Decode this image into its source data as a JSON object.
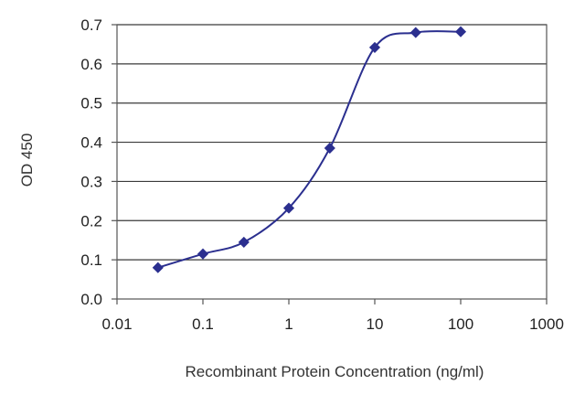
{
  "chart_data": {
    "type": "line",
    "title": "",
    "xlabel": "Recombinant Protein Concentration (ng/ml)",
    "ylabel": "OD 450",
    "x_scale": "log",
    "xlim": [
      0.01,
      1000
    ],
    "ylim": [
      0.0,
      0.7
    ],
    "x_ticks": [
      0.01,
      0.1,
      1,
      10,
      100,
      1000
    ],
    "x_tick_labels": [
      "0.01",
      "0.1",
      "1",
      "10",
      "100",
      "1000"
    ],
    "y_ticks": [
      0.0,
      0.1,
      0.2,
      0.3,
      0.4,
      0.5,
      0.6,
      0.7
    ],
    "y_tick_labels": [
      "0.0",
      "0.1",
      "0.2",
      "0.3",
      "0.4",
      "0.5",
      "0.6",
      "0.7"
    ],
    "grid": "horizontal",
    "legend": "none",
    "series": [
      {
        "color": "#2b2f8f",
        "x": [
          0.03,
          0.1,
          0.3,
          1,
          3,
          10,
          30,
          100
        ],
        "y": [
          0.08,
          0.115,
          0.145,
          0.232,
          0.385,
          0.642,
          0.68,
          0.682
        ]
      }
    ]
  }
}
